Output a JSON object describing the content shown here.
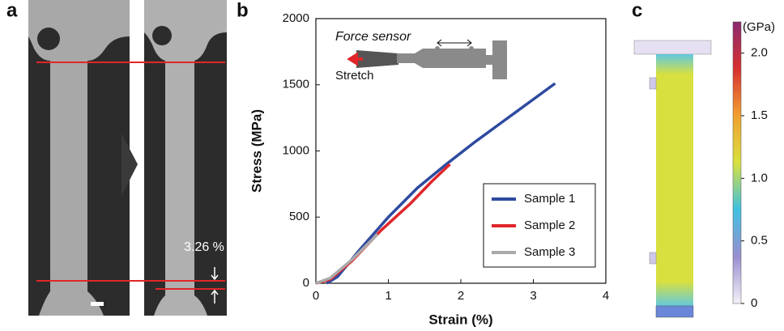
{
  "panel_labels": [
    "a",
    "b",
    "c"
  ],
  "panel_a": {
    "annotation": "3.26 %"
  },
  "chart_data": [
    {
      "type": "line",
      "xlabel": "Strain (%)",
      "ylabel": "Stress (MPa)",
      "annotations": [
        "Force sensor",
        "Stretch"
      ],
      "xlim": [
        0,
        4
      ],
      "xticks": [
        0,
        1,
        2,
        3,
        4
      ],
      "ylim": [
        0,
        2000
      ],
      "yticks": [
        0,
        500,
        1000,
        1500,
        2000
      ],
      "legend": "lower right",
      "series": [
        {
          "name": "Sample 1",
          "color": "#2e4aa0",
          "x": [
            0.15,
            0.3,
            0.6,
            1.0,
            1.4,
            1.8,
            2.2,
            2.6,
            3.0,
            3.3
          ],
          "values": [
            0,
            50,
            250,
            500,
            720,
            900,
            1070,
            1230,
            1390,
            1510
          ]
        },
        {
          "name": "Sample 2",
          "color": "#e0262a",
          "x": [
            0,
            0.2,
            0.5,
            0.9,
            1.3,
            1.6,
            1.85
          ],
          "values": [
            0,
            30,
            170,
            400,
            600,
            770,
            900
          ]
        },
        {
          "name": "Sample 3",
          "color": "#aaaaaa",
          "x": [
            0,
            0.2,
            0.5,
            0.85
          ],
          "values": [
            0,
            40,
            180,
            370
          ]
        }
      ]
    },
    {
      "type": "colorbar",
      "title": "(GPa)",
      "ylim": [
        0,
        2.25
      ],
      "yticks": [
        0,
        0.5,
        {
          "value": 1,
          "label": "1.0"
        },
        1.5,
        {
          "value": 2,
          "label": "2.0"
        }
      ],
      "colors": [
        "#f4f0f8",
        "#9a8fd0",
        "#40c0e0",
        "#d8e040",
        "#f0a030",
        "#d83030",
        "#8a2a70"
      ]
    }
  ]
}
